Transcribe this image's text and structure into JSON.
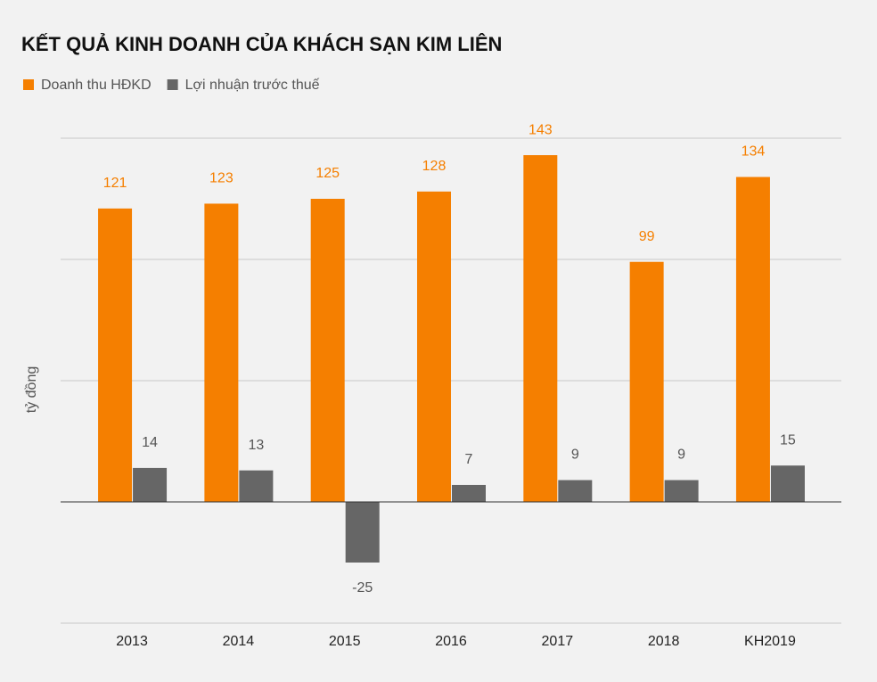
{
  "chart_data": {
    "type": "bar",
    "title": "KẾT QUẢ KINH DOANH CỦA KHÁCH SẠN KIM LIÊN",
    "y_label": "tỷ đồng",
    "categories": [
      "2013",
      "2014",
      "2015",
      "2016",
      "2017",
      "2018",
      "KH2019"
    ],
    "series": [
      {
        "name": "Doanh thu HĐKD",
        "color": "#f57f00",
        "values": [
          121,
          123,
          125,
          128,
          143,
          99,
          134
        ]
      },
      {
        "name": "Lợi nhuận trước thuế",
        "color": "#666666",
        "values": [
          14,
          13,
          -25,
          7,
          9,
          9,
          15
        ]
      }
    ],
    "ylim": [
      -50,
      150
    ],
    "yticks": [
      -50,
      0,
      50,
      100,
      150
    ],
    "grid": true,
    "legend": "top-left"
  }
}
